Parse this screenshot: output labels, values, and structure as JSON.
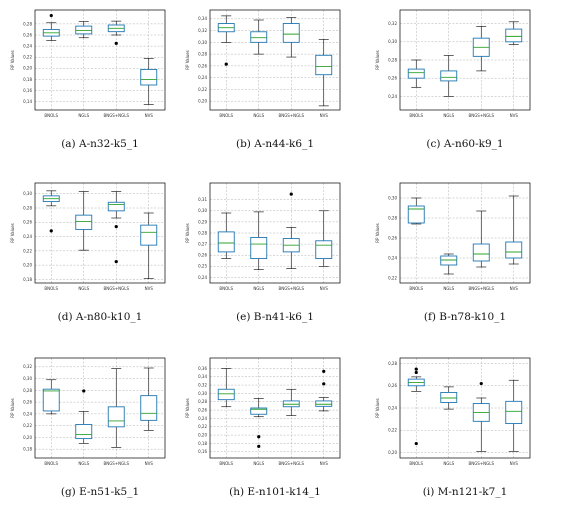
{
  "chart_data": [
    {
      "type": "box",
      "caption": "(a) A-n32-k5_1",
      "ylabel": "RP Values",
      "categories": [
        "BNOLS",
        "NGLS",
        "BNGS+NGLS",
        "NVS"
      ],
      "ylim": [
        0.125,
        0.305
      ],
      "yticks": [
        0.14,
        0.16,
        0.18,
        0.2,
        0.22,
        0.24,
        0.26,
        0.28
      ],
      "ytick_labels": [
        "0,14",
        "0,16",
        "0,18",
        "0,20",
        "0,22",
        "0,24",
        "0,26",
        "0,28"
      ],
      "boxes": [
        {
          "whislo": 0.25,
          "q1": 0.258,
          "med": 0.264,
          "q3": 0.27,
          "whishi": 0.282,
          "fliers": [
            0.295
          ]
        },
        {
          "whislo": 0.255,
          "q1": 0.262,
          "med": 0.268,
          "q3": 0.276,
          "whishi": 0.284,
          "fliers": []
        },
        {
          "whislo": 0.26,
          "q1": 0.266,
          "med": 0.272,
          "q3": 0.278,
          "whishi": 0.285,
          "fliers": [
            0.245
          ]
        },
        {
          "whislo": 0.135,
          "q1": 0.17,
          "med": 0.18,
          "q3": 0.198,
          "whishi": 0.218,
          "fliers": []
        }
      ]
    },
    {
      "type": "box",
      "caption": "(b) A-n44-k6_1",
      "ylabel": "RP Values",
      "categories": [
        "BNOLS",
        "NGLS",
        "BNGS+NGLS",
        "NVS"
      ],
      "ylim": [
        0.185,
        0.355
      ],
      "yticks": [
        0.2,
        0.22,
        0.24,
        0.26,
        0.28,
        0.3,
        0.32,
        0.34
      ],
      "ytick_labels": [
        "0,20",
        "0,22",
        "0,24",
        "0,26",
        "0,28",
        "0,30",
        "0,32",
        "0,34"
      ],
      "boxes": [
        {
          "whislo": 0.3,
          "q1": 0.318,
          "med": 0.325,
          "q3": 0.332,
          "whishi": 0.345,
          "fliers": [
            0.263
          ]
        },
        {
          "whislo": 0.28,
          "q1": 0.3,
          "med": 0.308,
          "q3": 0.318,
          "whishi": 0.338,
          "fliers": []
        },
        {
          "whislo": 0.275,
          "q1": 0.3,
          "med": 0.314,
          "q3": 0.332,
          "whishi": 0.342,
          "fliers": []
        },
        {
          "whislo": 0.192,
          "q1": 0.245,
          "med": 0.259,
          "q3": 0.278,
          "whishi": 0.305,
          "fliers": []
        }
      ]
    },
    {
      "type": "box",
      "caption": "(c) A-n60-k9_1",
      "ylabel": "RP Values",
      "categories": [
        "BNOLS",
        "NGLS",
        "BNGS+NGLS",
        "NVS"
      ],
      "ylim": [
        0.225,
        0.335
      ],
      "yticks": [
        0.24,
        0.26,
        0.28,
        0.3,
        0.32
      ],
      "ytick_labels": [
        "0,24",
        "0,26",
        "0,28",
        "0,30",
        "0,32"
      ],
      "boxes": [
        {
          "whislo": 0.25,
          "q1": 0.26,
          "med": 0.266,
          "q3": 0.27,
          "whishi": 0.28,
          "fliers": []
        },
        {
          "whislo": 0.24,
          "q1": 0.257,
          "med": 0.261,
          "q3": 0.268,
          "whishi": 0.285,
          "fliers": []
        },
        {
          "whislo": 0.268,
          "q1": 0.284,
          "med": 0.294,
          "q3": 0.304,
          "whishi": 0.317,
          "fliers": []
        },
        {
          "whislo": 0.297,
          "q1": 0.3,
          "med": 0.306,
          "q3": 0.314,
          "whishi": 0.322,
          "fliers": []
        }
      ]
    },
    {
      "type": "box",
      "caption": "(d) A-n80-k10_1",
      "ylabel": "RP Values",
      "categories": [
        "BNOLS",
        "NGLS",
        "BNGS+NGLS",
        "NVS"
      ],
      "ylim": [
        0.175,
        0.315
      ],
      "yticks": [
        0.18,
        0.2,
        0.22,
        0.24,
        0.26,
        0.28,
        0.3
      ],
      "ytick_labels": [
        "0,18",
        "0,20",
        "0,22",
        "0,24",
        "0,26",
        "0,28",
        "0,30"
      ],
      "boxes": [
        {
          "whislo": 0.283,
          "q1": 0.289,
          "med": 0.293,
          "q3": 0.297,
          "whishi": 0.304,
          "fliers": [
            0.248
          ]
        },
        {
          "whislo": 0.221,
          "q1": 0.25,
          "med": 0.261,
          "q3": 0.27,
          "whishi": 0.303,
          "fliers": []
        },
        {
          "whislo": 0.266,
          "q1": 0.276,
          "med": 0.285,
          "q3": 0.288,
          "whishi": 0.303,
          "fliers": [
            0.254,
            0.205
          ]
        },
        {
          "whislo": 0.181,
          "q1": 0.228,
          "med": 0.246,
          "q3": 0.256,
          "whishi": 0.273,
          "fliers": []
        }
      ]
    },
    {
      "type": "box",
      "caption": "(e) B-n41-k6_1",
      "ylabel": "RP Values",
      "categories": [
        "BNOLS",
        "NGLS",
        "BNGS+NGLS",
        "NVS"
      ],
      "ylim": [
        0.235,
        0.325
      ],
      "yticks": [
        0.24,
        0.25,
        0.26,
        0.27,
        0.28,
        0.29,
        0.3,
        0.31
      ],
      "ytick_labels": [
        "0,24",
        "0,25",
        "0,26",
        "0,27",
        "0,28",
        "0,29",
        "0,30",
        "0,31"
      ],
      "boxes": [
        {
          "whislo": 0.257,
          "q1": 0.263,
          "med": 0.271,
          "q3": 0.281,
          "whishi": 0.298,
          "fliers": []
        },
        {
          "whislo": 0.247,
          "q1": 0.257,
          "med": 0.27,
          "q3": 0.276,
          "whishi": 0.299,
          "fliers": []
        },
        {
          "whislo": 0.248,
          "q1": 0.263,
          "med": 0.269,
          "q3": 0.275,
          "whishi": 0.285,
          "fliers": [
            0.315
          ]
        },
        {
          "whislo": 0.25,
          "q1": 0.257,
          "med": 0.269,
          "q3": 0.273,
          "whishi": 0.3,
          "fliers": []
        }
      ]
    },
    {
      "type": "box",
      "caption": "(f) B-n78-k10_1",
      "ylabel": "RP Values",
      "categories": [
        "BNOLS",
        "NGLS",
        "BNGS+NGLS",
        "NVS"
      ],
      "ylim": [
        0.215,
        0.315
      ],
      "yticks": [
        0.22,
        0.24,
        0.26,
        0.28,
        0.3
      ],
      "ytick_labels": [
        "0,22",
        "0,24",
        "0,26",
        "0,28",
        "0,30"
      ],
      "boxes": [
        {
          "whislo": 0.274,
          "q1": 0.275,
          "med": 0.289,
          "q3": 0.292,
          "whishi": 0.3,
          "fliers": []
        },
        {
          "whislo": 0.224,
          "q1": 0.233,
          "med": 0.238,
          "q3": 0.242,
          "whishi": 0.244,
          "fliers": []
        },
        {
          "whislo": 0.231,
          "q1": 0.237,
          "med": 0.244,
          "q3": 0.254,
          "whishi": 0.287,
          "fliers": []
        },
        {
          "whislo": 0.234,
          "q1": 0.24,
          "med": 0.246,
          "q3": 0.256,
          "whishi": 0.302,
          "fliers": []
        }
      ]
    },
    {
      "type": "box",
      "caption": "(g) E-n51-k5_1",
      "ylabel": "RP Values",
      "categories": [
        "BNOLS",
        "NGLS",
        "BNGS+NGLS",
        "NVS"
      ],
      "ylim": [
        0.165,
        0.335
      ],
      "yticks": [
        0.18,
        0.2,
        0.22,
        0.24,
        0.26,
        0.28,
        0.3,
        0.32
      ],
      "ytick_labels": [
        "0,18",
        "0,20",
        "0,22",
        "0,24",
        "0,26",
        "0,28",
        "0,30",
        "0,32"
      ],
      "boxes": [
        {
          "whislo": 0.24,
          "q1": 0.245,
          "med": 0.279,
          "q3": 0.282,
          "whishi": 0.298,
          "fliers": []
        },
        {
          "whislo": 0.19,
          "q1": 0.198,
          "med": 0.205,
          "q3": 0.222,
          "whishi": 0.244,
          "fliers": [
            0.279
          ]
        },
        {
          "whislo": 0.183,
          "q1": 0.218,
          "med": 0.228,
          "q3": 0.252,
          "whishi": 0.317,
          "fliers": []
        },
        {
          "whislo": 0.212,
          "q1": 0.229,
          "med": 0.241,
          "q3": 0.271,
          "whishi": 0.318,
          "fliers": []
        }
      ]
    },
    {
      "type": "box",
      "caption": "(h) E-n101-k14_1",
      "ylabel": "RP Values",
      "categories": [
        "BNOLS",
        "NGLS",
        "BNGS+NGLS",
        "NVS"
      ],
      "ylim": [
        0.145,
        0.385
      ],
      "yticks": [
        0.16,
        0.18,
        0.2,
        0.22,
        0.24,
        0.26,
        0.28,
        0.3,
        0.32,
        0.34,
        0.36
      ],
      "ytick_labels": [
        "0,16",
        "0,18",
        "0,20",
        "0,22",
        "0,24",
        "0,26",
        "0,28",
        "0,30",
        "0,32",
        "0,34",
        "0,36"
      ],
      "boxes": [
        {
          "whislo": 0.268,
          "q1": 0.285,
          "med": 0.299,
          "q3": 0.31,
          "whishi": 0.36,
          "fliers": []
        },
        {
          "whislo": 0.244,
          "q1": 0.25,
          "med": 0.262,
          "q3": 0.265,
          "whishi": 0.288,
          "fliers": [
            0.196,
            0.173
          ]
        },
        {
          "whislo": 0.247,
          "q1": 0.268,
          "med": 0.274,
          "q3": 0.282,
          "whishi": 0.31,
          "fliers": []
        },
        {
          "whislo": 0.258,
          "q1": 0.269,
          "med": 0.274,
          "q3": 0.282,
          "whishi": 0.29,
          "fliers": [
            0.323,
            0.353
          ]
        }
      ]
    },
    {
      "type": "box",
      "caption": "(i) M-n121-k7_1",
      "ylabel": "RP Values",
      "categories": [
        "BNOLS",
        "NGLS",
        "BNGS+NGLS",
        "NVS"
      ],
      "ylim": [
        0.195,
        0.285
      ],
      "yticks": [
        0.2,
        0.22,
        0.24,
        0.26,
        0.28
      ],
      "ytick_labels": [
        "0,20",
        "0,22",
        "0,24",
        "0,26",
        "0,28"
      ],
      "boxes": [
        {
          "whislo": 0.255,
          "q1": 0.26,
          "med": 0.263,
          "q3": 0.266,
          "whishi": 0.268,
          "fliers": [
            0.275,
            0.272,
            0.208
          ]
        },
        {
          "whislo": 0.239,
          "q1": 0.245,
          "med": 0.249,
          "q3": 0.254,
          "whishi": 0.259,
          "fliers": []
        },
        {
          "whislo": 0.201,
          "q1": 0.228,
          "med": 0.236,
          "q3": 0.244,
          "whishi": 0.249,
          "fliers": [
            0.262
          ]
        },
        {
          "whislo": 0.201,
          "q1": 0.226,
          "med": 0.237,
          "q3": 0.246,
          "whishi": 0.265,
          "fliers": []
        }
      ]
    }
  ],
  "colors": {
    "box": "#1f77b4",
    "median": "#2ca02c",
    "whisker": "#000000",
    "flier": "#000000",
    "grid": "#b0b0b0"
  }
}
